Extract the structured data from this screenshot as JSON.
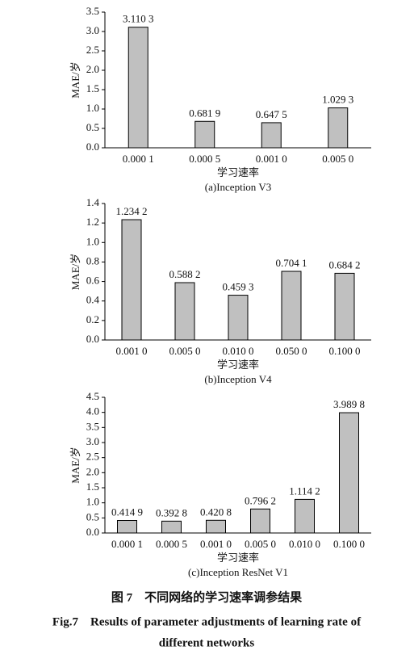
{
  "chart_data": [
    {
      "type": "bar",
      "subtitle": "(a)Inception V3",
      "x_label": "学习速率",
      "y_label": "MAE/岁",
      "categories": [
        "0.000 1",
        "0.000 5",
        "0.001 0",
        "0.005 0"
      ],
      "values": [
        3.1103,
        0.6819,
        0.6475,
        1.0293
      ],
      "value_labels": [
        "3.110 3",
        "0.681 9",
        "0.647 5",
        "1.029 3"
      ],
      "color": "#c0c0c0",
      "ylim": [
        0,
        3.5
      ],
      "yticks": [
        {
          "value": 0,
          "label": "0.0"
        },
        0.5,
        {
          "value": 1,
          "label": "1.0"
        },
        1.5,
        {
          "value": 2,
          "label": "2.0"
        },
        2.5,
        {
          "value": 3,
          "label": "3.0"
        },
        3.5
      ]
    },
    {
      "type": "bar",
      "subtitle": "(b)Inception V4",
      "x_label": "学习速率",
      "y_label": "MAE/岁",
      "categories": [
        "0.001 0",
        "0.005 0",
        "0.010 0",
        "0.050 0",
        "0.100 0"
      ],
      "values": [
        1.2342,
        0.5882,
        0.4593,
        0.7041,
        0.6842
      ],
      "value_labels": [
        "1.234 2",
        "0.588 2",
        "0.459 3",
        "0.704 1",
        "0.684 2"
      ],
      "color": "#c0c0c0",
      "ylim": [
        0,
        1.4
      ],
      "yticks": [
        {
          "value": 0,
          "label": "0.0"
        },
        0.2,
        0.4,
        0.6,
        0.8,
        {
          "value": 1,
          "label": "1.0"
        },
        1.2,
        1.4
      ]
    },
    {
      "type": "bar",
      "subtitle": "(c)Inception ResNet V1",
      "x_label": "学习速率",
      "y_label": "MAE/岁",
      "categories": [
        "0.000 1",
        "0.000 5",
        "0.001 0",
        "0.005 0",
        "0.010 0",
        "0.100 0"
      ],
      "values": [
        0.4149,
        0.3928,
        0.4208,
        0.7962,
        1.1142,
        3.9898
      ],
      "value_labels": [
        "0.414 9",
        "0.392 8",
        "0.420 8",
        "0.796 2",
        "1.114 2",
        "3.989 8"
      ],
      "color": "#c0c0c0",
      "ylim": [
        0,
        4.5
      ],
      "yticks": [
        {
          "value": 0,
          "label": "0.0"
        },
        0.5,
        {
          "value": 1,
          "label": "1.0"
        },
        1.5,
        {
          "value": 2,
          "label": "2.0"
        },
        2.5,
        {
          "value": 3,
          "label": "3.0"
        },
        3.5,
        {
          "value": 4,
          "label": "4.0"
        },
        4.5
      ]
    }
  ],
  "figure": {
    "caption_zh": "图 7　不同网络的学习速率调参结果",
    "caption_en_line1": "Fig.7　Results of parameter adjustments of learning rate of",
    "caption_en_line2": "different networks"
  }
}
